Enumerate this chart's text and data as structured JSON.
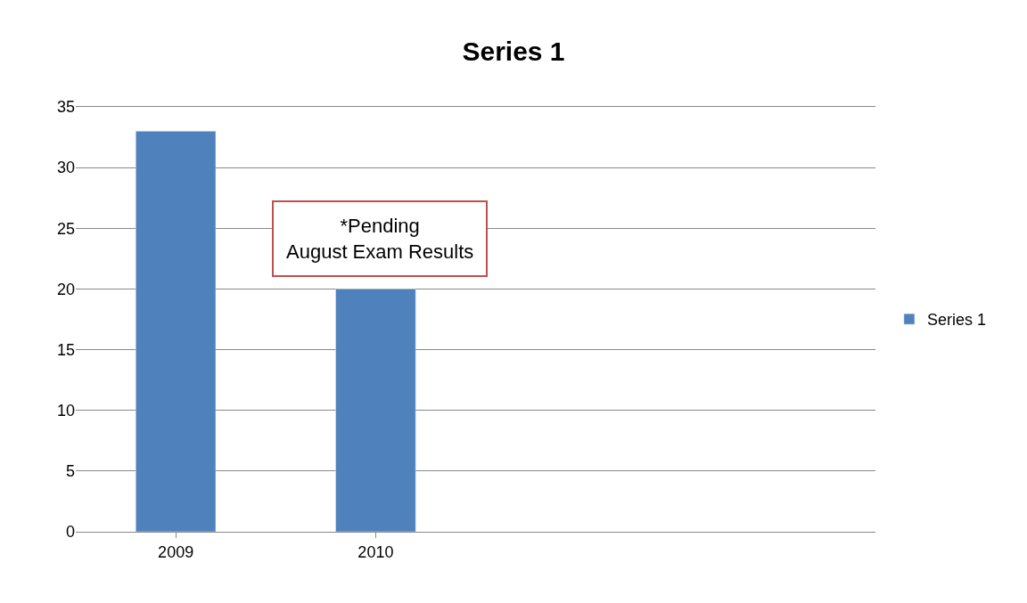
{
  "chart_data": {
    "type": "bar",
    "title": "Series 1",
    "categories": [
      "2009",
      "2010",
      null,
      null
    ],
    "series": [
      {
        "name": "Series 1",
        "color": "#4f81bd",
        "values": [
          33,
          20,
          null,
          null
        ]
      }
    ],
    "ylim": [
      0,
      35
    ],
    "yticks": [
      0,
      5,
      10,
      15,
      20,
      25,
      30,
      35
    ],
    "grid": "y",
    "legend": "right",
    "annotations": [
      "*Pending\nAugust Exam Results"
    ]
  }
}
